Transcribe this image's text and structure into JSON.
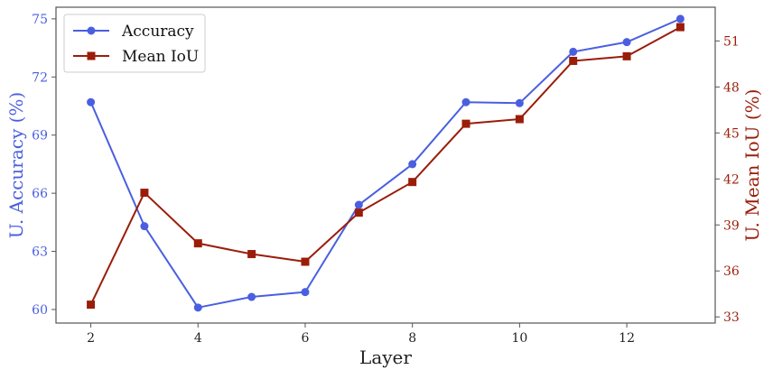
{
  "chart_data": {
    "type": "line",
    "x": [
      2,
      3,
      4,
      5,
      6,
      7,
      8,
      9,
      10,
      11,
      12,
      13
    ],
    "xlabel": "Layer",
    "xlim": [
      1.35,
      13.65
    ],
    "xticks": [
      "2",
      "4",
      "6",
      "8",
      "10",
      "12"
    ],
    "ylabel_left": "U. Accuracy (%)",
    "ylim_left": [
      59.3,
      75.6
    ],
    "yticks_left": [
      "60",
      "63",
      "66",
      "69",
      "72",
      "75"
    ],
    "ylabel_right": "U. Mean IoU (%)",
    "ylim_right": [
      32.6,
      53.2
    ],
    "yticks_right": [
      "33",
      "36",
      "39",
      "42",
      "45",
      "48",
      "51"
    ],
    "grid": false,
    "legend_position": "top-left",
    "series": [
      {
        "name": "Accuracy",
        "axis": "left",
        "marker": "circle",
        "color": "#4a5fe0",
        "values": [
          70.7,
          64.3,
          60.1,
          60.65,
          60.9,
          65.4,
          67.5,
          70.7,
          70.65,
          73.3,
          73.8,
          75.0
        ]
      },
      {
        "name": "Mean IoU",
        "axis": "right",
        "marker": "square",
        "color": "#9a1d0a",
        "values": [
          33.8,
          41.1,
          37.8,
          37.1,
          36.6,
          39.8,
          41.8,
          45.6,
          45.9,
          49.7,
          50.0,
          51.9
        ]
      }
    ]
  }
}
